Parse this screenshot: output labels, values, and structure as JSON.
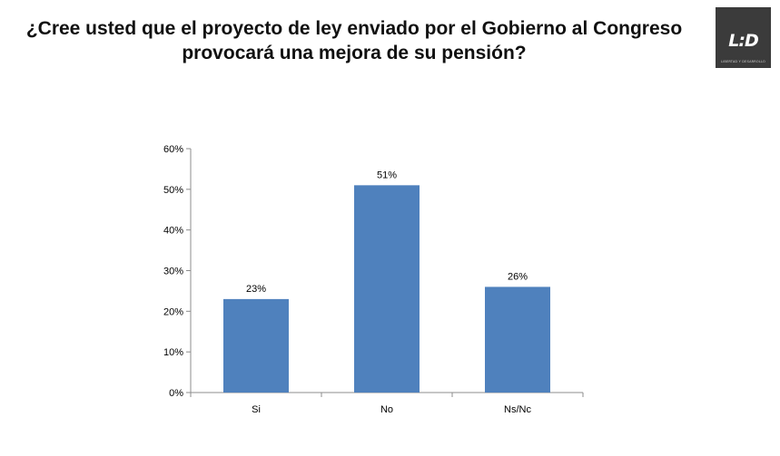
{
  "title": {
    "line1": "¿Cree usted que el proyecto de ley enviado por el Gobierno al Congreso",
    "line2": "provocará una mejora de su pensión?"
  },
  "logo": {
    "mark": "L:D",
    "subtitle": "LIBERTAD Y DESARROLLO"
  },
  "colors": {
    "bar": "#4f81bd",
    "axis": "#8c8c8c",
    "logo_bg": "#3b3b3b"
  },
  "chart_data": {
    "type": "bar",
    "categories": [
      "Si",
      "No",
      "Ns/Nc"
    ],
    "values": [
      23,
      51,
      26
    ],
    "value_labels": [
      "23%",
      "51%",
      "26%"
    ],
    "ylim": [
      0,
      60
    ],
    "yticks": [
      0,
      10,
      20,
      30,
      40,
      50,
      60
    ],
    "ytick_labels": [
      "0%",
      "10%",
      "20%",
      "30%",
      "40%",
      "50%",
      "60%"
    ],
    "xlabel": "",
    "ylabel": "",
    "grid": false,
    "legend": "none"
  }
}
